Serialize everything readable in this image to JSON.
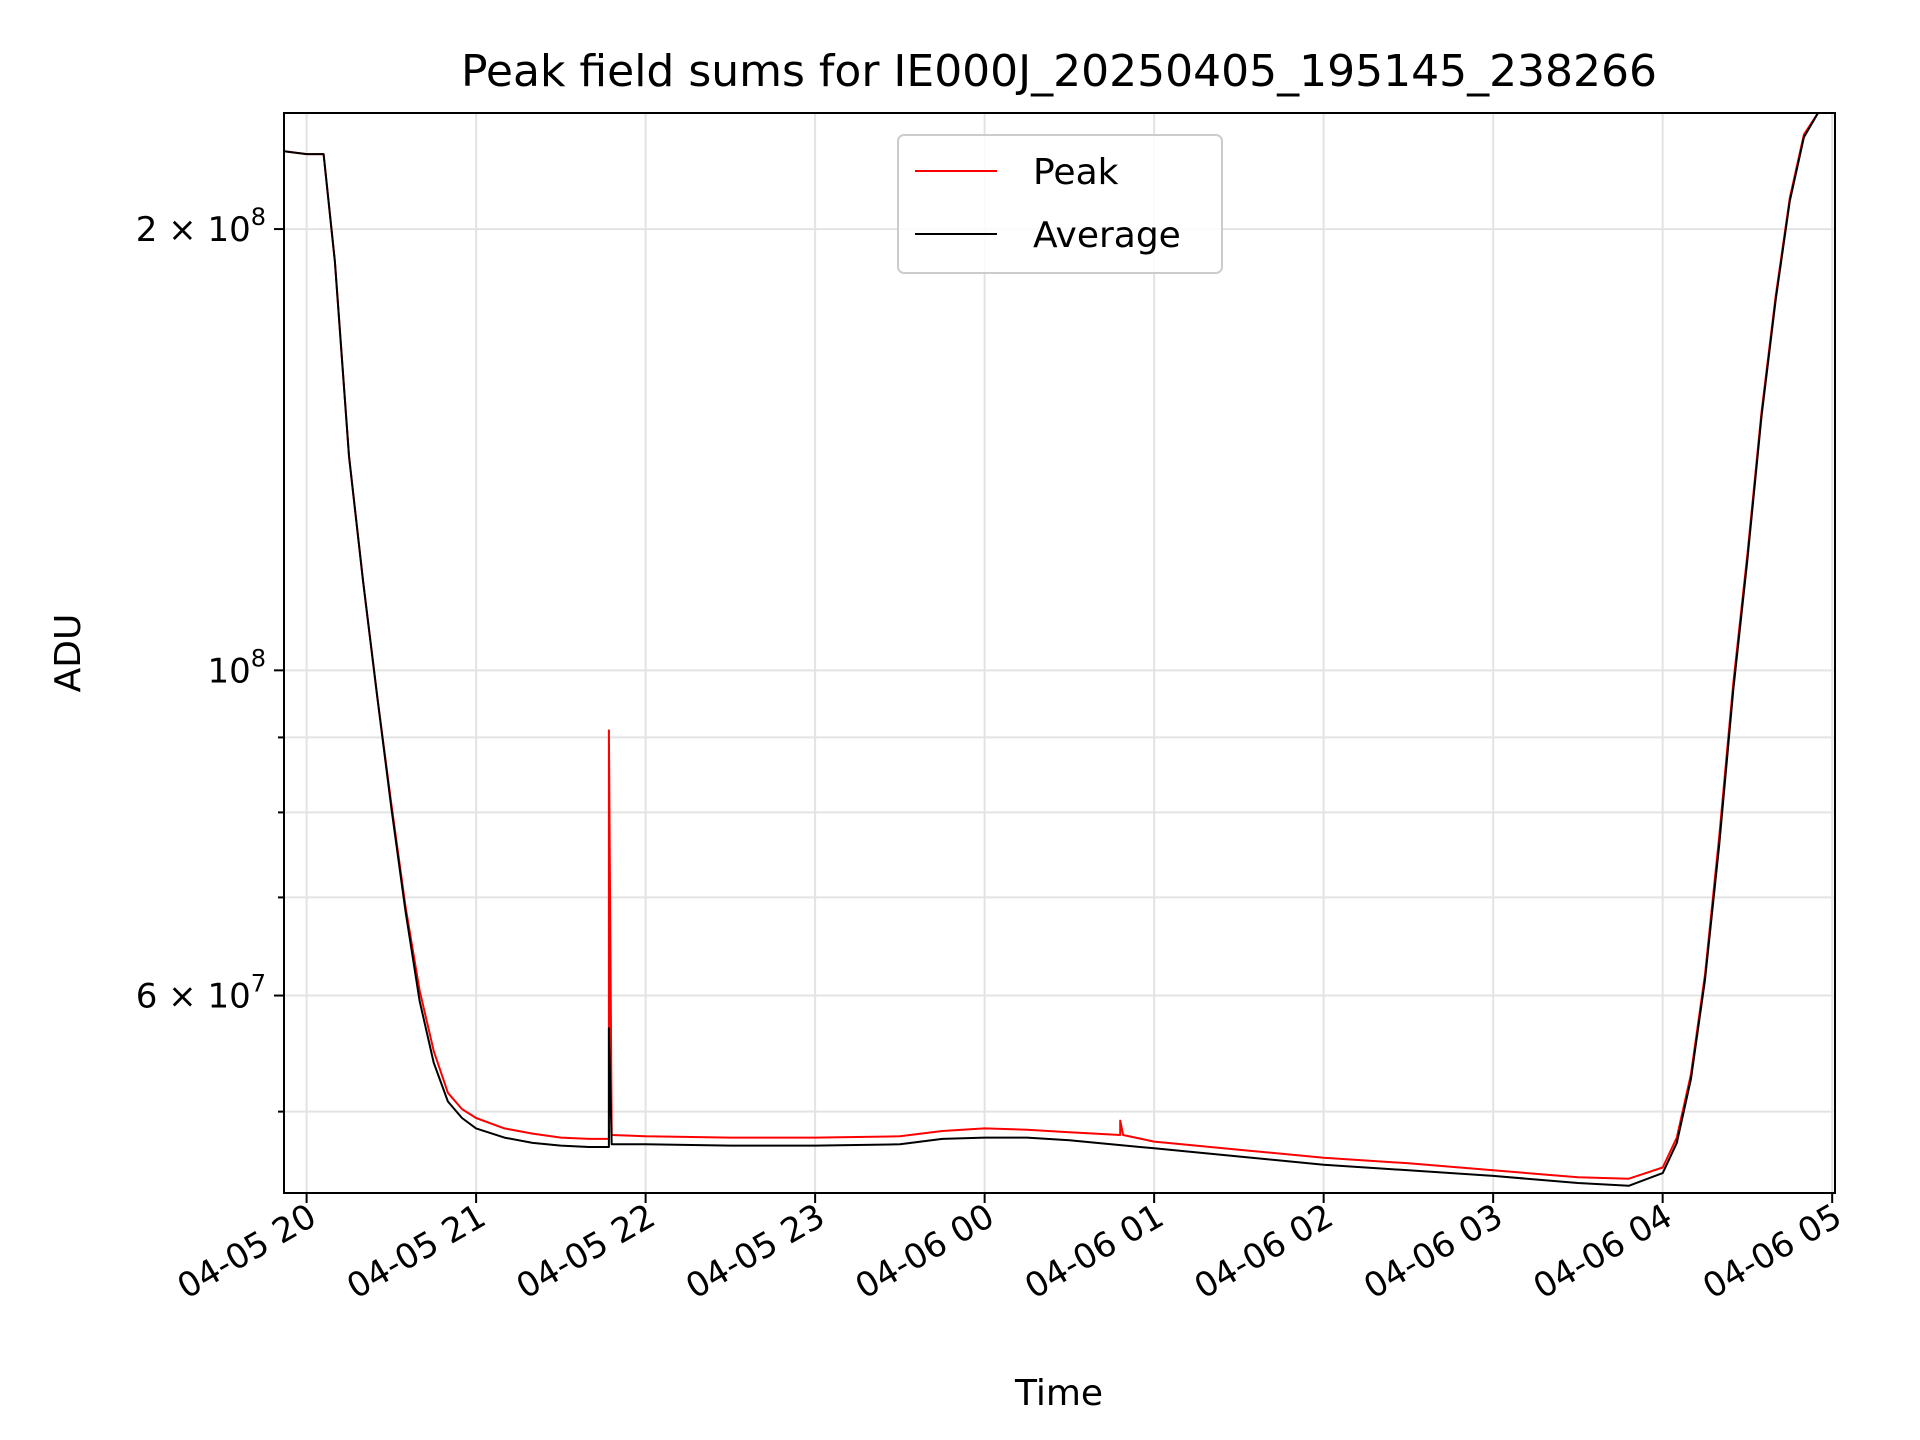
{
  "chart_data": {
    "type": "line",
    "title": "Peak field sums for IE000J_20250405_195145_238266",
    "xlabel": "Time",
    "ylabel": "ADU",
    "x_ticks": [
      "04-05 20",
      "04-05 21",
      "04-05 22",
      "04-05 23",
      "04-06 00",
      "04-06 01",
      "04-06 02",
      "04-06 03",
      "04-06 04",
      "04-06 05"
    ],
    "x_range": [
      "2025-04-05 19:52",
      "2025-04-06 05:01"
    ],
    "y_scale": "log",
    "y_range": [
      44000000,
      240000000
    ],
    "y_ticks": [
      {
        "value": 200000000,
        "base": "2 × 10",
        "exp": "8"
      },
      {
        "value": 100000000,
        "base": "10",
        "exp": "8"
      },
      {
        "value": 60000000,
        "base": "6 × 10",
        "exp": "7"
      }
    ],
    "y_minor_ticks": [
      50000000,
      70000000,
      80000000,
      90000000
    ],
    "grid": true,
    "legend_position": "top-center",
    "series": [
      {
        "name": "Peak",
        "color": "#ff0000",
        "x": [
          "2025-04-05 19:52",
          "2025-04-05 20:00",
          "2025-04-05 20:06",
          "2025-04-05 20:10",
          "2025-04-05 20:15",
          "2025-04-05 20:20",
          "2025-04-05 20:25",
          "2025-04-05 20:30",
          "2025-04-05 20:35",
          "2025-04-05 20:40",
          "2025-04-05 20:45",
          "2025-04-05 20:50",
          "2025-04-05 20:55",
          "2025-04-05 21:00",
          "2025-04-05 21:10",
          "2025-04-05 21:20",
          "2025-04-05 21:30",
          "2025-04-05 21:40",
          "2025-04-05 21:47",
          "2025-04-05 21:47",
          "2025-04-05 21:48",
          "2025-04-05 22:00",
          "2025-04-05 22:30",
          "2025-04-05 23:00",
          "2025-04-05 23:30",
          "2025-04-05 23:45",
          "2025-04-06 00:00",
          "2025-04-06 00:15",
          "2025-04-06 00:30",
          "2025-04-06 00:48",
          "2025-04-06 00:48",
          "2025-04-06 00:49",
          "2025-04-06 01:00",
          "2025-04-06 01:30",
          "2025-04-06 02:00",
          "2025-04-06 02:30",
          "2025-04-06 03:00",
          "2025-04-06 03:30",
          "2025-04-06 03:48",
          "2025-04-06 04:00",
          "2025-04-06 04:05",
          "2025-04-06 04:10",
          "2025-04-06 04:15",
          "2025-04-06 04:20",
          "2025-04-06 04:25",
          "2025-04-06 04:30",
          "2025-04-06 04:35",
          "2025-04-06 04:40",
          "2025-04-06 04:45",
          "2025-04-06 04:50",
          "2025-04-06 04:55"
        ],
        "values": [
          226000000,
          225000000,
          225000000,
          190000000,
          140000000,
          115000000,
          96000000,
          81000000,
          69000000,
          60500000,
          55000000,
          51500000,
          50200000,
          49500000,
          48700000,
          48300000,
          48000000,
          47900000,
          47900000,
          91000000,
          48200000,
          48100000,
          48000000,
          48000000,
          48100000,
          48500000,
          48700000,
          48600000,
          48400000,
          48200000,
          49300000,
          48200000,
          47700000,
          47100000,
          46500000,
          46100000,
          45600000,
          45100000,
          45000000,
          45800000,
          48000000,
          53000000,
          62000000,
          77000000,
          98000000,
          120000000,
          150000000,
          180000000,
          210000000,
          232000000,
          240000000
        ]
      },
      {
        "name": "Average",
        "color": "#000000",
        "x": [
          "2025-04-05 19:52",
          "2025-04-05 20:00",
          "2025-04-05 20:06",
          "2025-04-05 20:10",
          "2025-04-05 20:15",
          "2025-04-05 20:20",
          "2025-04-05 20:25",
          "2025-04-05 20:30",
          "2025-04-05 20:35",
          "2025-04-05 20:40",
          "2025-04-05 20:45",
          "2025-04-05 20:50",
          "2025-04-05 20:55",
          "2025-04-05 21:00",
          "2025-04-05 21:10",
          "2025-04-05 21:20",
          "2025-04-05 21:30",
          "2025-04-05 21:40",
          "2025-04-05 21:47",
          "2025-04-05 21:47",
          "2025-04-05 21:48",
          "2025-04-05 22:00",
          "2025-04-05 22:30",
          "2025-04-05 23:00",
          "2025-04-05 23:30",
          "2025-04-05 23:45",
          "2025-04-06 00:00",
          "2025-04-06 00:15",
          "2025-04-06 00:30",
          "2025-04-06 01:00",
          "2025-04-06 01:30",
          "2025-04-06 02:00",
          "2025-04-06 02:30",
          "2025-04-06 03:00",
          "2025-04-06 03:30",
          "2025-04-06 03:48",
          "2025-04-06 04:00",
          "2025-04-06 04:05",
          "2025-04-06 04:10",
          "2025-04-06 04:15",
          "2025-04-06 04:20",
          "2025-04-06 04:25",
          "2025-04-06 04:30",
          "2025-04-06 04:35",
          "2025-04-06 04:40",
          "2025-04-06 04:45",
          "2025-04-06 04:50",
          "2025-04-06 04:55"
        ],
        "values": [
          226000000,
          225000000,
          225000000,
          190000000,
          140000000,
          115000000,
          96000000,
          80500000,
          68500000,
          59500000,
          54000000,
          50800000,
          49500000,
          48700000,
          48000000,
          47600000,
          47400000,
          47300000,
          47300000,
          57000000,
          47500000,
          47500000,
          47400000,
          47400000,
          47500000,
          47900000,
          48000000,
          48000000,
          47800000,
          47200000,
          46600000,
          46000000,
          45600000,
          45200000,
          44700000,
          44500000,
          45400000,
          47600000,
          52600000,
          61500000,
          76000000,
          97000000,
          119000000,
          149000000,
          179000000,
          209000000,
          231000000,
          240000000
        ]
      }
    ]
  }
}
